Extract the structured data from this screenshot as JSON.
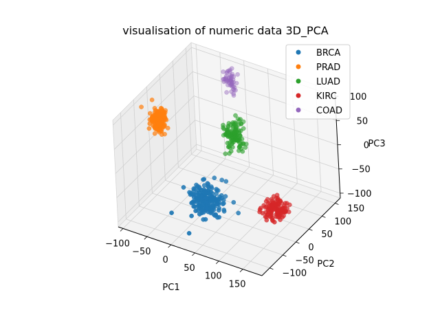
{
  "chart_data": {
    "type": "scatter",
    "title": "visualisation of numeric data 3D_PCA",
    "xlabel": "PC1",
    "ylabel": "PC2",
    "zlabel": "PC3",
    "xlim": [
      -110,
      190
    ],
    "ylim": [
      -130,
      170
    ],
    "zlim": [
      -110,
      110
    ],
    "xticks": [
      "−100",
      "−50",
      "0",
      "50",
      "100",
      "150"
    ],
    "xtick_values": [
      -100,
      -50,
      0,
      50,
      100,
      150
    ],
    "yticks": [
      "−100",
      "−50",
      "0",
      "50",
      "100",
      "150"
    ],
    "ytick_values": [
      -100,
      -50,
      0,
      50,
      100,
      150
    ],
    "zticks": [
      "−100",
      "−50",
      "0",
      "50",
      "100"
    ],
    "ztick_values": [
      -100,
      -50,
      0,
      50,
      100
    ],
    "grid": true,
    "legend_position": "top-right",
    "series": [
      {
        "name": "BRCA",
        "color": "#1f77b4",
        "center": [
          40,
          -60,
          -40
        ],
        "spread": [
          16,
          16,
          14
        ],
        "n": 200
      },
      {
        "name": "PRAD",
        "color": "#ff7f0e",
        "center": [
          -95,
          10,
          40
        ],
        "spread": [
          8,
          10,
          12
        ],
        "n": 150
      },
      {
        "name": "LUAD",
        "color": "#2ca02c",
        "center": [
          40,
          55,
          30
        ],
        "spread": [
          9,
          10,
          16
        ],
        "n": 120
      },
      {
        "name": "KIRC",
        "color": "#d62728",
        "center": [
          150,
          0,
          -55
        ],
        "spread": [
          10,
          12,
          8
        ],
        "n": 120
      },
      {
        "name": "COAD",
        "color": "#9467bd",
        "center": [
          -20,
          150,
          70
        ],
        "spread": [
          6,
          8,
          14
        ],
        "n": 50
      }
    ]
  }
}
